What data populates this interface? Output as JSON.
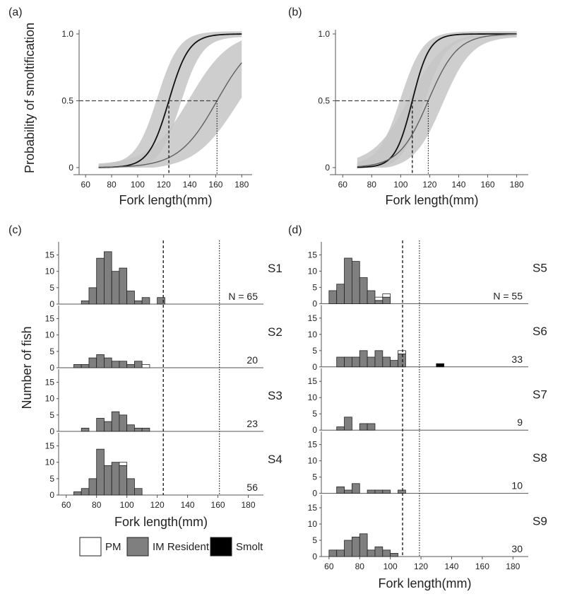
{
  "colors": {
    "band": "#c6c6c6",
    "resident_curve": "#111111",
    "migrant_curve": "#606060",
    "pm": "#ffffff",
    "im_resident": "#7f7f7f",
    "smolt": "#000000",
    "axis": "#555555"
  },
  "legend": {
    "items": [
      {
        "key": "pm",
        "label": "PM"
      },
      {
        "key": "im_resident",
        "label": "IM Resident"
      },
      {
        "key": "smolt",
        "label": "Smolt"
      }
    ]
  },
  "chart_data": [
    {
      "id": "a",
      "panel_label": "(a)",
      "type": "line",
      "xlabel": "Fork length(mm)",
      "ylabel": "Probability of smoltification",
      "xlim": [
        55,
        188
      ],
      "ylim": [
        0,
        1
      ],
      "xticks": [
        60,
        80,
        100,
        120,
        140,
        160,
        180
      ],
      "yticks": [
        {
          "v": 0,
          "label": "0"
        },
        {
          "v": 0.5,
          "label": "0.5"
        },
        {
          "v": 1,
          "label": "1.0"
        }
      ],
      "series": [
        {
          "style": "dark",
          "x0": 124,
          "k": 0.13,
          "xrange": [
            70,
            180
          ],
          "band": {
            "x0lo": 115,
            "klo": 0.12,
            "x0hi": 133,
            "khi": 0.12
          }
        },
        {
          "style": "gray",
          "x0": 161,
          "k": 0.068,
          "xrange": [
            70,
            180
          ],
          "band": {
            "x0lo": 140,
            "klo": 0.065,
            "x0hi": 177,
            "khi": 0.06
          }
        }
      ],
      "reference": {
        "y": 0.5,
        "x_dashed": 124,
        "x_dotted": 161
      }
    },
    {
      "id": "b",
      "panel_label": "(b)",
      "type": "line",
      "xlabel": "Fork length(mm)",
      "ylabel": "",
      "xlim": [
        55,
        188
      ],
      "ylim": [
        0,
        1
      ],
      "xticks": [
        60,
        80,
        100,
        120,
        140,
        160,
        180
      ],
      "yticks": [
        {
          "v": 0,
          "label": "0"
        },
        {
          "v": 0.5,
          "label": "0.5"
        },
        {
          "v": 1,
          "label": "1.0"
        }
      ],
      "series": [
        {
          "style": "dark",
          "x0": 108,
          "k": 0.17,
          "xrange": [
            70,
            180
          ],
          "band": {
            "x0lo": 100,
            "klo": 0.13,
            "x0hi": 116,
            "khi": 0.13
          }
        },
        {
          "style": "gray",
          "x0": 119,
          "k": 0.1,
          "xrange": [
            70,
            180
          ],
          "band": {
            "x0lo": 106,
            "klo": 0.08,
            "x0hi": 129,
            "khi": 0.1
          }
        }
      ],
      "reference": {
        "y": 0.5,
        "x_dashed": 108,
        "x_dotted": 119
      }
    },
    {
      "id": "c",
      "panel_label": "(c)",
      "type": "bar",
      "xlabel": "Fork length(mm)",
      "ylabel": "Number of fish",
      "xlim": [
        55,
        190
      ],
      "ylim": [
        0,
        19
      ],
      "xticks": [
        60,
        80,
        100,
        120,
        140,
        160,
        180
      ],
      "yticks": [
        0,
        5,
        10,
        15
      ],
      "bin_width": 5,
      "ref_dashed": 124,
      "ref_dotted": 161,
      "sites": [
        {
          "name": "S1",
          "count_label": "N = 65",
          "bars": [
            {
              "x": 72.5,
              "im": 1
            },
            {
              "x": 77.5,
              "im": 5
            },
            {
              "x": 82.5,
              "im": 14
            },
            {
              "x": 87.5,
              "im": 16
            },
            {
              "x": 92.5,
              "im": 10
            },
            {
              "x": 97.5,
              "im": 11
            },
            {
              "x": 102.5,
              "im": 4
            },
            {
              "x": 107.5,
              "im": 1
            },
            {
              "x": 112.5,
              "im": 2
            },
            {
              "x": 122.5,
              "im": 2
            }
          ]
        },
        {
          "name": "S2",
          "count_label": "20",
          "bars": [
            {
              "x": 67.5,
              "im": 1
            },
            {
              "x": 72.5,
              "im": 1
            },
            {
              "x": 77.5,
              "im": 3
            },
            {
              "x": 82.5,
              "im": 4
            },
            {
              "x": 87.5,
              "im": 3
            },
            {
              "x": 92.5,
              "im": 2
            },
            {
              "x": 97.5,
              "im": 2
            },
            {
              "x": 102.5,
              "im": 1
            },
            {
              "x": 107.5,
              "im": 2
            },
            {
              "x": 112.5,
              "im": 0,
              "pm": 1
            }
          ]
        },
        {
          "name": "S3",
          "count_label": "23",
          "bars": [
            {
              "x": 72.5,
              "im": 1
            },
            {
              "x": 82.5,
              "im": 4
            },
            {
              "x": 87.5,
              "im": 3
            },
            {
              "x": 92.5,
              "im": 6
            },
            {
              "x": 97.5,
              "im": 5
            },
            {
              "x": 102.5,
              "im": 2
            },
            {
              "x": 107.5,
              "im": 1
            },
            {
              "x": 112.5,
              "im": 1
            }
          ]
        },
        {
          "name": "S4",
          "count_label": "56",
          "bars": [
            {
              "x": 67.5,
              "im": 1
            },
            {
              "x": 72.5,
              "im": 2
            },
            {
              "x": 77.5,
              "im": 5
            },
            {
              "x": 82.5,
              "im": 14
            },
            {
              "x": 87.5,
              "im": 9
            },
            {
              "x": 92.5,
              "im": 10
            },
            {
              "x": 97.5,
              "im": 9,
              "pm": 1
            },
            {
              "x": 102.5,
              "im": 5
            },
            {
              "x": 107.5,
              "im": 2
            }
          ]
        }
      ]
    },
    {
      "id": "d",
      "panel_label": "(d)",
      "type": "bar",
      "xlabel": "Fork length(mm)",
      "ylabel": "",
      "xlim": [
        55,
        190
      ],
      "ylim": [
        0,
        19
      ],
      "xticks": [
        60,
        80,
        100,
        120,
        140,
        160,
        180
      ],
      "yticks": [
        0,
        5,
        10,
        15
      ],
      "bin_width": 5,
      "ref_dashed": 108,
      "ref_dotted": 119,
      "sites": [
        {
          "name": "S5",
          "count_label": "N = 55",
          "bars": [
            {
              "x": 62.5,
              "im": 4
            },
            {
              "x": 67.5,
              "im": 6
            },
            {
              "x": 72.5,
              "im": 14
            },
            {
              "x": 77.5,
              "im": 13
            },
            {
              "x": 82.5,
              "im": 8
            },
            {
              "x": 87.5,
              "im": 4
            },
            {
              "x": 92.5,
              "im": 1,
              "pm": 1
            },
            {
              "x": 97.5,
              "im": 2,
              "pm": 1
            }
          ]
        },
        {
          "name": "S6",
          "count_label": "33",
          "bars": [
            {
              "x": 67.5,
              "im": 3
            },
            {
              "x": 72.5,
              "im": 3
            },
            {
              "x": 77.5,
              "im": 3
            },
            {
              "x": 82.5,
              "im": 5
            },
            {
              "x": 87.5,
              "im": 3
            },
            {
              "x": 92.5,
              "im": 5
            },
            {
              "x": 97.5,
              "im": 3
            },
            {
              "x": 102.5,
              "im": 2
            },
            {
              "x": 107.5,
              "im": 4,
              "pm": 1
            },
            {
              "x": 132.5,
              "smolt": 1
            }
          ]
        },
        {
          "name": "S7",
          "count_label": "9",
          "bars": [
            {
              "x": 67.5,
              "im": 1
            },
            {
              "x": 72.5,
              "im": 4
            },
            {
              "x": 82.5,
              "im": 2
            },
            {
              "x": 87.5,
              "im": 2
            }
          ]
        },
        {
          "name": "S8",
          "count_label": "10",
          "bars": [
            {
              "x": 67.5,
              "im": 2
            },
            {
              "x": 72.5,
              "im": 1
            },
            {
              "x": 77.5,
              "im": 3
            },
            {
              "x": 87.5,
              "im": 1
            },
            {
              "x": 92.5,
              "im": 1
            },
            {
              "x": 97.5,
              "im": 1
            },
            {
              "x": 107.5,
              "im": 1
            }
          ]
        },
        {
          "name": "S9",
          "count_label": "30",
          "bars": [
            {
              "x": 62.5,
              "im": 2
            },
            {
              "x": 67.5,
              "im": 2
            },
            {
              "x": 72.5,
              "im": 5
            },
            {
              "x": 77.5,
              "im": 6
            },
            {
              "x": 82.5,
              "im": 7
            },
            {
              "x": 87.5,
              "im": 2
            },
            {
              "x": 92.5,
              "im": 3
            },
            {
              "x": 97.5,
              "im": 2
            },
            {
              "x": 102.5,
              "im": 1
            }
          ]
        }
      ]
    }
  ]
}
